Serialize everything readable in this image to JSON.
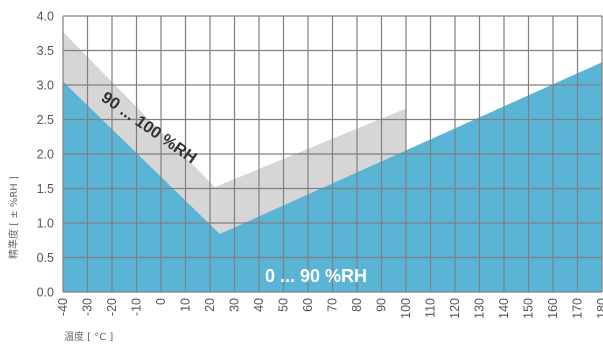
{
  "chart_data": {
    "type": "area",
    "xlabel": "温度 [ °C ]",
    "ylabel": "精準度 [ ± %RH ]",
    "xlim": [
      -40,
      180
    ],
    "ylim": [
      0,
      4.0
    ],
    "x_ticks": [
      "-40",
      "-30",
      "-20",
      "-10",
      "0",
      "10",
      "20",
      "30",
      "40",
      "50",
      "60",
      "70",
      "80",
      "90",
      "100",
      "110",
      "120",
      "130",
      "140",
      "150",
      "160",
      "170",
      "180"
    ],
    "y_ticks": [
      "0.0",
      "0.5",
      "1.0",
      "1.5",
      "2.0",
      "2.5",
      "3.0",
      "3.5",
      "4.0"
    ],
    "grid": true,
    "series": [
      {
        "name": "0 ... 90 %RH",
        "color": "#5ab4d6",
        "points": [
          [
            -40,
            3.05
          ],
          [
            24,
            0.84
          ],
          [
            180,
            3.33
          ]
        ]
      },
      {
        "name": "90 ... 100 %RH",
        "color": "#d6d6d6",
        "points": [
          [
            -40,
            3.77
          ],
          [
            22,
            1.52
          ],
          [
            100,
            2.66
          ]
        ]
      }
    ]
  }
}
